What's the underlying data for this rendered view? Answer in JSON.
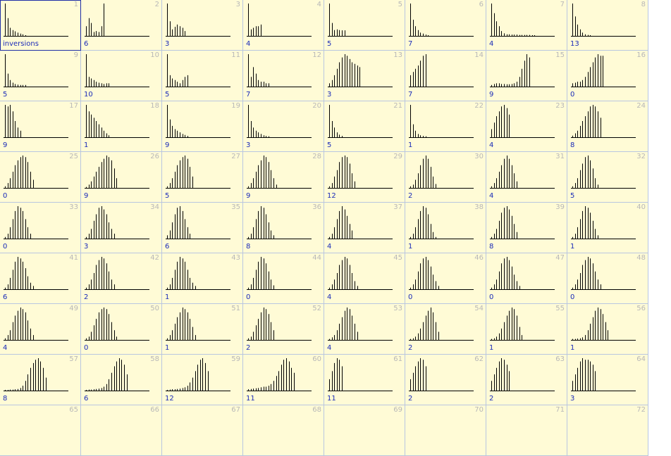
{
  "chart_data": [
    {
      "type": "bar",
      "number": "1",
      "label": "inversions",
      "values": [
        1,
        0.55,
        0.25,
        0.18,
        0.14,
        0.1,
        0.07,
        0.05,
        0.02
      ]
    },
    {
      "type": "bar",
      "number": "2",
      "label": "6",
      "values": [
        0.3,
        0.55,
        0.4,
        0.12,
        0.15,
        0.12,
        0.3,
        1
      ]
    },
    {
      "type": "bar",
      "number": "3",
      "label": "3",
      "values": [
        1,
        0.45,
        0.2,
        0.28,
        0.35,
        0.3,
        0.25,
        0.15
      ]
    },
    {
      "type": "bar",
      "number": "4",
      "label": "4",
      "values": [
        1,
        0.2,
        0.25,
        0.3,
        0.3,
        0.35
      ]
    },
    {
      "type": "bar",
      "number": "5",
      "label": "5",
      "values": [
        1,
        0.4,
        0.18,
        0.2,
        0.18,
        0.17,
        0.17
      ]
    },
    {
      "type": "bar",
      "number": "6",
      "label": "7",
      "values": [
        1,
        0.5,
        0.3,
        0.18,
        0.1,
        0.07,
        0.04,
        0.02
      ]
    },
    {
      "type": "bar",
      "number": "7",
      "label": "4",
      "values": [
        1,
        0.7,
        0.45,
        0.3,
        0.15,
        0.08,
        0.05,
        0.05,
        0.04,
        0.04,
        0.04,
        0.03,
        0.03,
        0.03,
        0.03,
        0.03,
        0.02,
        0.02
      ]
    },
    {
      "type": "bar",
      "number": "8",
      "label": "13",
      "values": [
        1,
        0.6,
        0.35,
        0.2,
        0.1,
        0.05,
        0.03,
        0.02
      ]
    },
    {
      "type": "bar",
      "number": "9",
      "label": "5",
      "values": [
        1,
        0.4,
        0.2,
        0.12,
        0.08,
        0.06,
        0.05,
        0.05,
        0.05
      ]
    },
    {
      "type": "bar",
      "number": "10",
      "label": "10",
      "values": [
        1,
        0.3,
        0.25,
        0.2,
        0.15,
        0.12,
        0.1,
        0.08,
        0.1,
        0.1
      ]
    },
    {
      "type": "bar",
      "number": "11",
      "label": "5",
      "values": [
        1,
        0.35,
        0.25,
        0.2,
        0.15,
        0.1,
        0.2,
        0.3,
        0.35
      ]
    },
    {
      "type": "bar",
      "number": "12",
      "label": "7",
      "values": [
        1,
        0.3,
        0.6,
        0.4,
        0.2,
        0.15,
        0.15,
        0.1,
        0.1
      ]
    },
    {
      "type": "bar",
      "number": "13",
      "label": "3",
      "values": [
        0.1,
        0.2,
        0.35,
        0.55,
        0.75,
        0.9,
        1,
        0.95,
        0.85,
        0.75,
        0.7,
        0.65,
        0.6
      ]
    },
    {
      "type": "bar",
      "number": "14",
      "label": "7",
      "values": [
        0.35,
        0.45,
        0.55,
        0.65,
        0.8,
        0.95,
        1
      ]
    },
    {
      "type": "bar",
      "number": "15",
      "label": "9",
      "values": [
        0.05,
        0.08,
        0.1,
        0.1,
        0.08,
        0.08,
        0.07,
        0.07,
        0.08,
        0.1,
        0.15,
        0.3,
        0.55,
        0.8,
        1,
        0.9
      ]
    },
    {
      "type": "bar",
      "number": "16",
      "label": "0",
      "values": [
        0.1,
        0.12,
        0.15,
        0.15,
        0.2,
        0.3,
        0.45,
        0.6,
        0.75,
        0.9,
        1,
        0.95,
        0.95
      ]
    },
    {
      "type": "bar",
      "number": "17",
      "label": "9",
      "values": [
        1,
        0.95,
        1,
        0.8,
        0.5,
        0.3,
        0.2
      ]
    },
    {
      "type": "bar",
      "number": "18",
      "label": "1",
      "values": [
        1,
        0.8,
        0.7,
        0.6,
        0.5,
        0.4,
        0.3,
        0.2,
        0.12,
        0.06
      ]
    },
    {
      "type": "bar",
      "number": "19",
      "label": "9",
      "values": [
        1,
        0.55,
        0.35,
        0.25,
        0.2,
        0.15,
        0.1,
        0.07,
        0.04
      ]
    },
    {
      "type": "bar",
      "number": "20",
      "label": "3",
      "values": [
        1,
        0.5,
        0.3,
        0.2,
        0.15,
        0.1,
        0.06,
        0.04,
        0.03
      ]
    },
    {
      "type": "bar",
      "number": "21",
      "label": "5",
      "values": [
        1,
        0.5,
        0.3,
        0.15,
        0.08,
        0.04
      ]
    },
    {
      "type": "bar",
      "number": "22",
      "label": "1",
      "values": [
        1,
        0.4,
        0.2,
        0.1,
        0.06,
        0.04,
        0.03
      ]
    },
    {
      "type": "bar",
      "number": "23",
      "label": "4",
      "values": [
        0.25,
        0.45,
        0.65,
        0.8,
        0.95,
        1,
        0.9,
        0.7
      ]
    },
    {
      "type": "bar",
      "number": "24",
      "label": "8",
      "values": [
        0.05,
        0.12,
        0.2,
        0.35,
        0.5,
        0.65,
        0.8,
        0.95,
        1,
        0.95,
        0.8,
        0.6
      ]
    },
    {
      "type": "bar",
      "number": "25",
      "label": "0",
      "values": [
        0.05,
        0.15,
        0.3,
        0.5,
        0.7,
        0.85,
        0.95,
        1,
        0.95,
        0.8,
        0.5,
        0.25
      ]
    },
    {
      "type": "bar",
      "number": "26",
      "label": "9",
      "values": [
        0.03,
        0.1,
        0.2,
        0.35,
        0.5,
        0.65,
        0.8,
        0.9,
        1,
        0.95,
        0.85,
        0.6,
        0.3
      ]
    },
    {
      "type": "bar",
      "number": "27",
      "label": "5",
      "values": [
        0.05,
        0.15,
        0.3,
        0.5,
        0.7,
        0.85,
        0.95,
        1,
        0.9,
        0.65,
        0.35
      ]
    },
    {
      "type": "bar",
      "number": "28",
      "label": "9",
      "values": [
        0.05,
        0.15,
        0.3,
        0.5,
        0.7,
        0.85,
        1,
        0.95,
        0.8,
        0.55,
        0.3,
        0.1
      ]
    },
    {
      "type": "bar",
      "number": "29",
      "label": "12",
      "values": [
        0.05,
        0.15,
        0.35,
        0.55,
        0.8,
        0.95,
        1,
        0.95,
        0.75,
        0.45,
        0.2
      ]
    },
    {
      "type": "bar",
      "number": "30",
      "label": "2",
      "values": [
        0.05,
        0.1,
        0.25,
        0.45,
        0.7,
        0.9,
        1,
        0.9,
        0.65,
        0.35,
        0.12
      ]
    },
    {
      "type": "bar",
      "number": "31",
      "label": "4",
      "values": [
        0.05,
        0.15,
        0.3,
        0.5,
        0.7,
        0.9,
        1,
        0.9,
        0.7,
        0.45,
        0.2
      ]
    },
    {
      "type": "bar",
      "number": "32",
      "label": "5",
      "values": [
        0.05,
        0.15,
        0.3,
        0.55,
        0.75,
        0.95,
        1,
        0.85,
        0.6,
        0.3,
        0.1
      ]
    },
    {
      "type": "bar",
      "number": "33",
      "label": "0",
      "values": [
        0.05,
        0.15,
        0.35,
        0.6,
        0.85,
        1,
        0.95,
        0.85,
        0.6,
        0.35,
        0.15
      ]
    },
    {
      "type": "bar",
      "number": "34",
      "label": "3",
      "values": [
        0.05,
        0.15,
        0.3,
        0.55,
        0.75,
        0.95,
        1,
        0.9,
        0.75,
        0.5,
        0.3,
        0.15
      ]
    },
    {
      "type": "bar",
      "number": "35",
      "label": "6",
      "values": [
        0.1,
        0.25,
        0.5,
        0.75,
        0.95,
        1,
        0.85,
        0.6,
        0.35,
        0.15
      ]
    },
    {
      "type": "bar",
      "number": "36",
      "label": "8",
      "values": [
        0.05,
        0.15,
        0.35,
        0.6,
        0.85,
        1,
        0.95,
        0.75,
        0.5,
        0.25,
        0.1
      ]
    },
    {
      "type": "bar",
      "number": "37",
      "label": "4",
      "values": [
        0.05,
        0.15,
        0.35,
        0.6,
        0.85,
        1,
        0.9,
        0.7,
        0.45,
        0.25
      ]
    },
    {
      "type": "bar",
      "number": "38",
      "label": "1",
      "values": [
        0.05,
        0.15,
        0.35,
        0.6,
        0.85,
        1,
        0.95,
        0.75,
        0.45,
        0.2,
        0.05
      ]
    },
    {
      "type": "bar",
      "number": "39",
      "label": "8",
      "values": [
        0.05,
        0.15,
        0.3,
        0.55,
        0.8,
        0.95,
        1,
        0.9,
        0.7,
        0.45,
        0.2
      ]
    },
    {
      "type": "bar",
      "number": "40",
      "label": "1",
      "values": [
        0.05,
        0.15,
        0.35,
        0.6,
        0.85,
        1,
        0.95,
        0.8,
        0.55,
        0.3,
        0.1
      ]
    },
    {
      "type": "bar",
      "number": "41",
      "label": "6",
      "values": [
        0.05,
        0.15,
        0.35,
        0.6,
        0.85,
        1,
        0.95,
        0.85,
        0.65,
        0.4,
        0.2,
        0.1
      ]
    },
    {
      "type": "bar",
      "number": "42",
      "label": "2",
      "values": [
        0.05,
        0.15,
        0.3,
        0.5,
        0.75,
        0.9,
        1,
        0.95,
        0.8,
        0.55,
        0.3,
        0.15
      ]
    },
    {
      "type": "bar",
      "number": "43",
      "label": "1",
      "values": [
        0.05,
        0.15,
        0.35,
        0.6,
        0.85,
        1,
        0.95,
        0.85,
        0.6,
        0.35,
        0.2,
        0.1
      ]
    },
    {
      "type": "bar",
      "number": "44",
      "label": "0",
      "values": [
        0.05,
        0.15,
        0.35,
        0.6,
        0.85,
        1,
        0.95,
        0.8,
        0.55,
        0.3,
        0.12
      ]
    },
    {
      "type": "bar",
      "number": "45",
      "label": "4",
      "values": [
        0.05,
        0.15,
        0.3,
        0.5,
        0.75,
        0.9,
        1,
        0.95,
        0.75,
        0.5,
        0.25,
        0.1
      ]
    },
    {
      "type": "bar",
      "number": "46",
      "label": "0",
      "values": [
        0.05,
        0.15,
        0.3,
        0.55,
        0.8,
        0.95,
        1,
        0.9,
        0.7,
        0.45,
        0.25,
        0.1
      ]
    },
    {
      "type": "bar",
      "number": "47",
      "label": "0",
      "values": [
        0.05,
        0.15,
        0.3,
        0.55,
        0.8,
        0.95,
        1,
        0.9,
        0.7,
        0.45,
        0.25,
        0.1
      ]
    },
    {
      "type": "bar",
      "number": "48",
      "label": "0",
      "values": [
        0.05,
        0.15,
        0.3,
        0.5,
        0.75,
        0.9,
        1,
        0.95,
        0.8,
        0.55,
        0.3,
        0.15
      ]
    },
    {
      "type": "bar",
      "number": "49",
      "label": "4",
      "values": [
        0.05,
        0.15,
        0.3,
        0.55,
        0.75,
        0.9,
        1,
        0.95,
        0.85,
        0.6,
        0.35,
        0.15
      ]
    },
    {
      "type": "bar",
      "number": "50",
      "label": "0",
      "values": [
        0.05,
        0.1,
        0.25,
        0.45,
        0.65,
        0.85,
        0.95,
        1,
        0.95,
        0.8,
        0.55,
        0.3,
        0.1
      ]
    },
    {
      "type": "bar",
      "number": "51",
      "label": "1",
      "values": [
        0.05,
        0.15,
        0.3,
        0.5,
        0.7,
        0.85,
        1,
        0.95,
        0.85,
        0.65,
        0.4,
        0.15
      ]
    },
    {
      "type": "bar",
      "number": "52",
      "label": "2",
      "values": [
        0.05,
        0.1,
        0.25,
        0.45,
        0.65,
        0.85,
        1,
        0.95,
        0.8,
        0.55,
        0.3
      ]
    },
    {
      "type": "bar",
      "number": "53",
      "label": "4",
      "values": [
        0.03,
        0.08,
        0.15,
        0.3,
        0.5,
        0.7,
        0.9,
        1,
        0.95,
        0.75,
        0.5,
        0.25
      ]
    },
    {
      "type": "bar",
      "number": "54",
      "label": "2",
      "values": [
        0.03,
        0.05,
        0.1,
        0.2,
        0.35,
        0.55,
        0.75,
        0.9,
        1,
        0.85,
        0.55,
        0.25
      ]
    },
    {
      "type": "bar",
      "number": "55",
      "label": "1",
      "values": [
        0.03,
        0.05,
        0.1,
        0.2,
        0.35,
        0.55,
        0.75,
        0.9,
        1,
        0.95,
        0.75,
        0.4,
        0.15
      ]
    },
    {
      "type": "bar",
      "number": "56",
      "label": "1",
      "values": [
        0.03,
        0.03,
        0.04,
        0.05,
        0.08,
        0.15,
        0.3,
        0.5,
        0.7,
        0.9,
        1,
        0.95,
        0.8,
        0.55,
        0.3
      ]
    },
    {
      "type": "bar",
      "number": "57",
      "label": "8",
      "values": [
        0.02,
        0.02,
        0.03,
        0.03,
        0.04,
        0.05,
        0.08,
        0.15,
        0.3,
        0.5,
        0.7,
        0.85,
        0.95,
        1,
        0.9,
        0.7,
        0.4
      ]
    },
    {
      "type": "bar",
      "number": "58",
      "label": "6",
      "values": [
        0.02,
        0.03,
        0.03,
        0.04,
        0.05,
        0.06,
        0.08,
        0.12,
        0.2,
        0.35,
        0.55,
        0.75,
        0.9,
        1,
        0.95,
        0.8,
        0.5
      ]
    },
    {
      "type": "bar",
      "number": "59",
      "label": "12",
      "values": [
        0.02,
        0.03,
        0.04,
        0.04,
        0.05,
        0.06,
        0.08,
        0.1,
        0.15,
        0.25,
        0.4,
        0.6,
        0.8,
        0.95,
        1,
        0.85,
        0.6
      ]
    },
    {
      "type": "bar",
      "number": "60",
      "label": "11",
      "values": [
        0.04,
        0.05,
        0.06,
        0.07,
        0.08,
        0.1,
        0.12,
        0.12,
        0.15,
        0.2,
        0.3,
        0.45,
        0.6,
        0.8,
        0.95,
        1,
        0.9,
        0.7,
        0.55
      ]
    },
    {
      "type": "bar",
      "number": "61",
      "label": "11",
      "values": [
        0.35,
        0.6,
        0.85,
        1,
        0.95,
        0.75
      ]
    },
    {
      "type": "bar",
      "number": "62",
      "label": "2",
      "values": [
        0.35,
        0.55,
        0.75,
        0.9,
        1,
        0.95,
        0.75
      ]
    },
    {
      "type": "bar",
      "number": "63",
      "label": "2",
      "values": [
        0.3,
        0.5,
        0.7,
        0.9,
        1,
        0.95,
        0.8,
        0.6
      ]
    },
    {
      "type": "bar",
      "number": "64",
      "label": "3",
      "values": [
        0.3,
        0.5,
        0.7,
        0.9,
        1,
        0.95,
        0.95,
        0.9,
        0.8,
        0.6
      ]
    },
    {
      "type": "bar",
      "number": "65",
      "label": "",
      "values": []
    },
    {
      "type": "bar",
      "number": "66",
      "label": "",
      "values": []
    },
    {
      "type": "bar",
      "number": "67",
      "label": "",
      "values": []
    },
    {
      "type": "bar",
      "number": "68",
      "label": "",
      "values": []
    },
    {
      "type": "bar",
      "number": "69",
      "label": "",
      "values": []
    },
    {
      "type": "bar",
      "number": "70",
      "label": "",
      "values": []
    },
    {
      "type": "bar",
      "number": "71",
      "label": "",
      "values": []
    },
    {
      "type": "bar",
      "number": "72",
      "label": "",
      "values": []
    }
  ],
  "selected_cell": "1",
  "colors": {
    "background": "#fffbd6",
    "grid_line": "#b9c6e0",
    "bar": "#000000",
    "label": "#1a2bb8",
    "number": "#b8b8b8",
    "selection": "#1f2ea6"
  }
}
